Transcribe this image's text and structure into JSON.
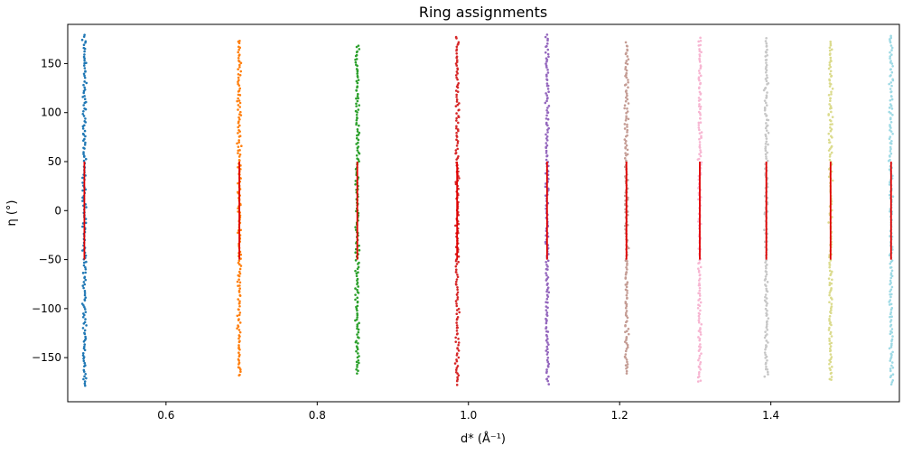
{
  "chart_data": {
    "type": "scatter",
    "title": "Ring assignments",
    "xlabel": "d* (Å⁻¹)",
    "ylabel": "η (°)",
    "xlim": [
      0.47,
      1.57
    ],
    "ylim": [
      -195,
      190
    ],
    "xticks": [
      0.6,
      0.8,
      1.0,
      1.2,
      1.4
    ],
    "xtick_labels": [
      "0.6",
      "0.8",
      "1.0",
      "1.2",
      "1.4"
    ],
    "yticks": [
      -150,
      -100,
      -50,
      0,
      50,
      100,
      150
    ],
    "ytick_labels": [
      "−150",
      "−100",
      "−50",
      "0",
      "50",
      "100",
      "150"
    ],
    "grid": false,
    "legend": "none",
    "series": [
      {
        "x_center": 0.492,
        "color": "#1f77b4",
        "eta_range": [
          -180,
          180
        ]
      },
      {
        "x_center": 0.697,
        "color": "#ff7f0e",
        "eta_range": [
          -170,
          175
        ]
      },
      {
        "x_center": 0.853,
        "color": "#2ca02c",
        "eta_range": [
          -167,
          170
        ]
      },
      {
        "x_center": 0.985,
        "color": "#d62728",
        "eta_range": [
          -178,
          178
        ]
      },
      {
        "x_center": 1.104,
        "color": "#9467bd",
        "eta_range": [
          -178,
          180
        ]
      },
      {
        "x_center": 1.209,
        "color": "#c49c94",
        "eta_range": [
          -167,
          172
        ]
      },
      {
        "x_center": 1.306,
        "color": "#f7b6d2",
        "eta_range": [
          -176,
          177
        ]
      },
      {
        "x_center": 1.394,
        "color": "#c7c7c7",
        "eta_range": [
          -170,
          176
        ]
      },
      {
        "x_center": 1.479,
        "color": "#dbdb8d",
        "eta_range": [
          -174,
          174
        ]
      },
      {
        "x_center": 1.559,
        "color": "#9edae5",
        "eta_range": [
          -178,
          180
        ]
      }
    ],
    "ring_markers": {
      "color": "#e00000",
      "eta_range": [
        -50,
        50
      ],
      "x": [
        0.492,
        0.697,
        0.853,
        0.985,
        1.104,
        1.209,
        1.306,
        1.394,
        1.479,
        1.559
      ]
    }
  }
}
